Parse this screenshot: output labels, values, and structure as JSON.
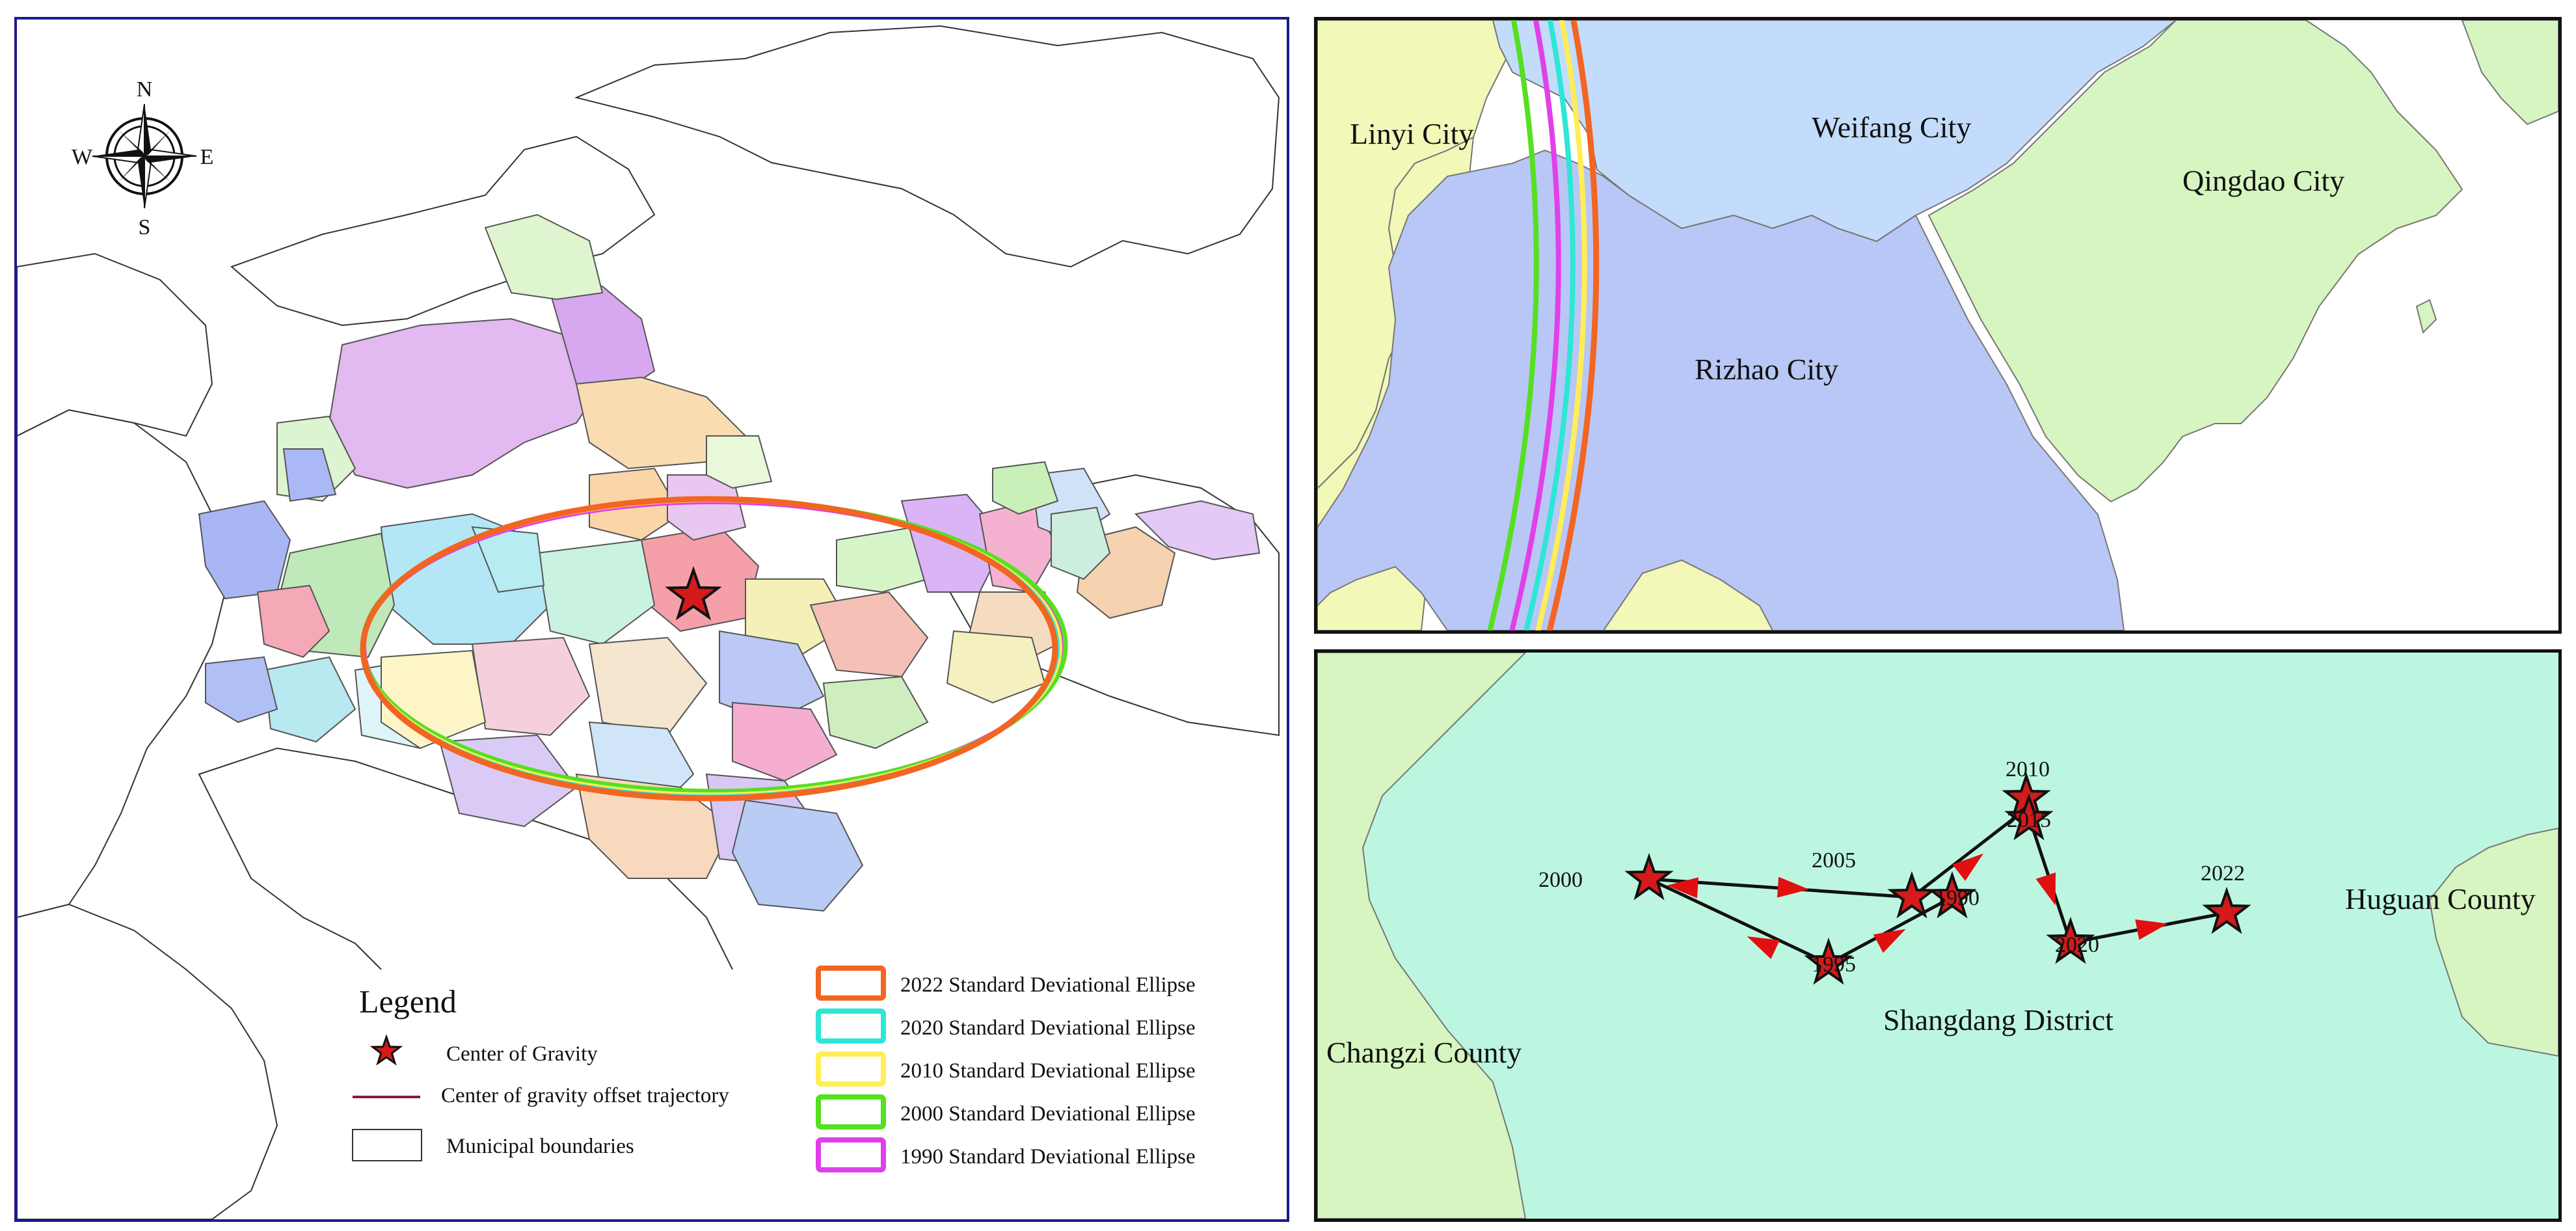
{
  "overview_map": {
    "compass": {
      "north": "N",
      "south": "S",
      "east": "E",
      "west": "W"
    },
    "legend": {
      "title": "Legend",
      "items": [
        {
          "label": "Center of Gravity",
          "symbol": "red-star"
        },
        {
          "label": "Center of gravity offset trajectory",
          "symbol": "line"
        },
        {
          "label": "Municipal boundaries",
          "symbol": "box"
        }
      ],
      "ellipses": [
        {
          "label": "2022 Standard Deviational Ellipse",
          "color": "#f26522"
        },
        {
          "label": "2020 Standard Deviational Ellipse",
          "color": "#2ee6d6"
        },
        {
          "label": "2010 Standard Deviational Ellipse",
          "color": "#ffee55"
        },
        {
          "label": "2000 Standard Deviational Ellipse",
          "color": "#55e022"
        },
        {
          "label": "1990 Standard Deviational Ellipse",
          "color": "#e040ea"
        }
      ]
    }
  },
  "detail_ellipse_map": {
    "places": [
      "Linyi City",
      "Weifang City",
      "Qingdao City",
      "Rizhao City"
    ]
  },
  "detail_gravity_map": {
    "places": [
      "Huguan County",
      "Changzi County",
      "Shangdang District"
    ],
    "year_labels": [
      "2000",
      "2005",
      "2010",
      "2015",
      "1990",
      "1995",
      "2020",
      "2022"
    ]
  },
  "colors": {
    "frame_main": "#1a1a8c",
    "star": "#d41a1a",
    "arrow": "#e01010",
    "trajectory": "#111111"
  }
}
